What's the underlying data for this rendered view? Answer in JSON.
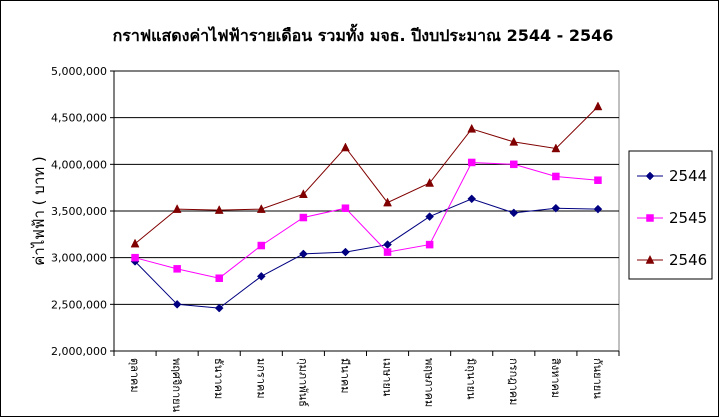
{
  "chart_data": {
    "type": "line",
    "title": "กราฟแสดงค่าไฟฟ้ารายเดือน รวมทั้ง มจธ. ปีงบประมาณ 2544 - 2546",
    "ylabel": "ค่าไฟฟ้า ( บาท )",
    "xlabel": "",
    "categories": [
      "ตุลาคม",
      "พฤศจิกายน",
      "ธันวาคม",
      "มกราคม",
      "กุมภาพันธ์",
      "มีนาคม",
      "เมษายน",
      "พฤษภาคม",
      "มิถุนายน",
      "กรกฎาคม",
      "สิงหาคม",
      "กันยายน"
    ],
    "ylim": [
      2000000,
      5000000
    ],
    "yticks": [
      2000000,
      2500000,
      3000000,
      3500000,
      4000000,
      4500000,
      5000000
    ],
    "ytick_labels": [
      "2,000,000",
      "2,500,000",
      "3,000,000",
      "3,500,000",
      "4,000,000",
      "4,500,000",
      "5,000,000"
    ],
    "grid": "horizontal",
    "legend_position": "right",
    "series": [
      {
        "name": "2544",
        "color": "#000080",
        "marker": "diamond",
        "values": [
          2960000,
          2500000,
          2460000,
          2800000,
          3040000,
          3060000,
          3140000,
          3440000,
          3630000,
          3480000,
          3530000,
          3520000
        ]
      },
      {
        "name": "2545",
        "color": "#ff00ff",
        "marker": "square",
        "values": [
          3000000,
          2880000,
          2780000,
          3130000,
          3430000,
          3530000,
          3060000,
          3140000,
          4020000,
          4000000,
          3870000,
          3830000
        ]
      },
      {
        "name": "2546",
        "color": "#800000",
        "marker": "triangle",
        "values": [
          3150000,
          3520000,
          3510000,
          3520000,
          3680000,
          4180000,
          3590000,
          3800000,
          4380000,
          4240000,
          4170000,
          4620000
        ]
      }
    ]
  }
}
